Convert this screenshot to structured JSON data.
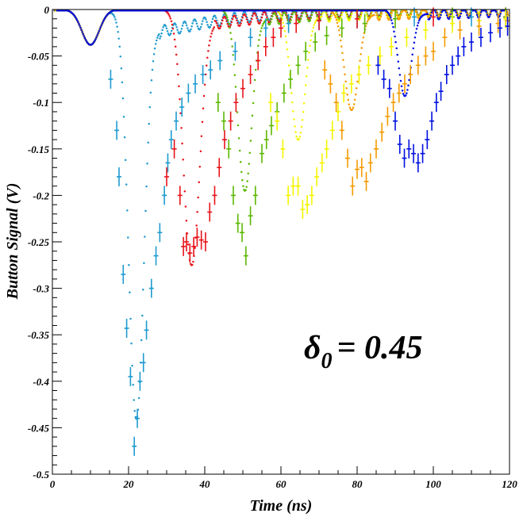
{
  "chart_data": {
    "type": "scatter",
    "title": "",
    "xlabel": "Time (ns)",
    "ylabel": "Button Signal (V)",
    "xlim": [
      0,
      120
    ],
    "ylim": [
      -0.5,
      0
    ],
    "grid": false,
    "x_ticks": [
      "0",
      "20",
      "40",
      "60",
      "80",
      "100",
      "120"
    ],
    "y_ticks": [
      "0",
      "-0.05",
      "-0.1",
      "-0.15",
      "-0.2",
      "-0.25",
      "-0.3",
      "-0.35",
      "-0.4",
      "-0.45",
      "-0.5"
    ],
    "annotation": {
      "symbol": "δ",
      "subscript": "0",
      "text": "= 0.45"
    },
    "colors": [
      "#1f9bd0",
      "#e8141a",
      "#5cb800",
      "#f5f500",
      "#f59b00",
      "#0010e0"
    ],
    "series": [
      {
        "color": "#1f9bd0",
        "sim_peak_x": 22,
        "sim_peak_y": -0.44,
        "sim_width": 2.8,
        "measured": [
          [
            15.3,
            -0.075
          ],
          [
            16.9,
            -0.13
          ],
          [
            17.5,
            -0.18
          ],
          [
            18.6,
            -0.285
          ],
          [
            19.5,
            -0.343
          ],
          [
            20.5,
            -0.395
          ],
          [
            21.5,
            -0.47
          ],
          [
            22.3,
            -0.44
          ],
          [
            23.0,
            -0.4
          ],
          [
            23.9,
            -0.38
          ],
          [
            24.7,
            -0.345
          ],
          [
            26.0,
            -0.3
          ],
          [
            27.2,
            -0.265
          ],
          [
            28.2,
            -0.24
          ],
          [
            29.4,
            -0.2
          ],
          [
            30.3,
            -0.165
          ],
          [
            31.2,
            -0.14
          ],
          [
            32.5,
            -0.12
          ],
          [
            34.0,
            -0.105
          ],
          [
            35.7,
            -0.09
          ],
          [
            37.5,
            -0.08
          ],
          [
            39.5,
            -0.07
          ],
          [
            41.5,
            -0.065
          ],
          [
            44.0,
            -0.055
          ],
          [
            48.0,
            -0.045
          ],
          [
            52.0,
            -0.03
          ],
          [
            56.0,
            -0.02
          ],
          [
            62.0,
            -0.015
          ],
          [
            70.0,
            -0.012
          ],
          [
            80.0,
            -0.01
          ],
          [
            95.0,
            -0.008
          ],
          [
            110.0,
            -0.008
          ],
          [
            119.0,
            -0.008
          ]
        ]
      },
      {
        "color": "#e8141a",
        "sim_peak_x": 36.5,
        "sim_peak_y": -0.275,
        "sim_width": 3.0,
        "measured": [
          [
            30.0,
            -0.18
          ],
          [
            32.0,
            -0.15
          ],
          [
            33.5,
            -0.2
          ],
          [
            34.4,
            -0.255
          ],
          [
            35.2,
            -0.25
          ],
          [
            36.1,
            -0.262
          ],
          [
            37.1,
            -0.255
          ],
          [
            38.0,
            -0.245
          ],
          [
            39.1,
            -0.248
          ],
          [
            40.2,
            -0.25
          ],
          [
            41.3,
            -0.218
          ],
          [
            42.6,
            -0.2
          ],
          [
            43.8,
            -0.17
          ],
          [
            45.2,
            -0.14
          ],
          [
            46.8,
            -0.12
          ],
          [
            48.2,
            -0.1
          ],
          [
            50.0,
            -0.085
          ],
          [
            52.0,
            -0.07
          ],
          [
            54.0,
            -0.055
          ],
          [
            56.0,
            -0.04
          ],
          [
            58.0,
            -0.03
          ],
          [
            60.0,
            -0.02
          ],
          [
            64.0,
            -0.015
          ],
          [
            70.0,
            -0.012
          ],
          [
            80.0,
            -0.01
          ],
          [
            100.0,
            -0.008
          ],
          [
            119.0,
            -0.008
          ]
        ]
      },
      {
        "color": "#5cb800",
        "sim_peak_x": 50.5,
        "sim_peak_y": -0.195,
        "sim_width": 2.6,
        "measured": [
          [
            43.5,
            -0.1
          ],
          [
            45.0,
            -0.12
          ],
          [
            46.3,
            -0.15
          ],
          [
            47.5,
            -0.2
          ],
          [
            48.7,
            -0.23
          ],
          [
            49.8,
            -0.24
          ],
          [
            50.8,
            -0.265
          ],
          [
            52.0,
            -0.222
          ],
          [
            53.3,
            -0.2
          ],
          [
            55.0,
            -0.155
          ],
          [
            56.2,
            -0.14
          ],
          [
            57.5,
            -0.125
          ],
          [
            59.0,
            -0.11
          ],
          [
            60.8,
            -0.09
          ],
          [
            62.5,
            -0.075
          ],
          [
            64.5,
            -0.06
          ],
          [
            66.5,
            -0.045
          ],
          [
            69.0,
            -0.035
          ],
          [
            72.0,
            -0.028
          ],
          [
            76.0,
            -0.02
          ],
          [
            82.0,
            -0.015
          ],
          [
            90.0,
            -0.01
          ],
          [
            105.0,
            -0.008
          ],
          [
            119.0,
            -0.008
          ]
        ]
      },
      {
        "color": "#f5f500",
        "sim_peak_x": 64.5,
        "sim_peak_y": -0.14,
        "sim_width": 2.6,
        "measured": [
          [
            57.3,
            -0.1
          ],
          [
            59.0,
            -0.12
          ],
          [
            60.5,
            -0.15
          ],
          [
            61.9,
            -0.2
          ],
          [
            63.2,
            -0.19
          ],
          [
            64.5,
            -0.19
          ],
          [
            65.7,
            -0.215
          ],
          [
            66.9,
            -0.21
          ],
          [
            68.1,
            -0.2
          ],
          [
            69.4,
            -0.18
          ],
          [
            70.8,
            -0.165
          ],
          [
            72.0,
            -0.15
          ],
          [
            73.5,
            -0.13
          ],
          [
            75.0,
            -0.11
          ],
          [
            76.5,
            -0.09
          ],
          [
            78.5,
            -0.08
          ],
          [
            80.5,
            -0.07
          ],
          [
            83.0,
            -0.06
          ],
          [
            86.0,
            -0.05
          ],
          [
            89.0,
            -0.04
          ],
          [
            93.0,
            -0.03
          ],
          [
            98.0,
            -0.022
          ],
          [
            105.0,
            -0.015
          ],
          [
            112.0,
            -0.012
          ],
          [
            119.0,
            -0.01
          ]
        ]
      },
      {
        "color": "#f59b00",
        "sim_peak_x": 78.5,
        "sim_peak_y": -0.108,
        "sim_width": 2.6,
        "measured": [
          [
            71.5,
            -0.065
          ],
          [
            73.0,
            -0.08
          ],
          [
            74.5,
            -0.1
          ],
          [
            76.0,
            -0.13
          ],
          [
            77.5,
            -0.16
          ],
          [
            78.8,
            -0.19
          ],
          [
            80.0,
            -0.172
          ],
          [
            81.2,
            -0.17
          ],
          [
            82.4,
            -0.185
          ],
          [
            83.5,
            -0.165
          ],
          [
            85.0,
            -0.15
          ],
          [
            86.5,
            -0.132
          ],
          [
            88.0,
            -0.115
          ],
          [
            89.5,
            -0.1
          ],
          [
            91.0,
            -0.09
          ],
          [
            92.5,
            -0.08
          ],
          [
            94.0,
            -0.07
          ],
          [
            96.0,
            -0.06
          ],
          [
            98.0,
            -0.05
          ],
          [
            100.0,
            -0.045
          ],
          [
            103.0,
            -0.03
          ],
          [
            107.0,
            -0.022
          ],
          [
            112.0,
            -0.018
          ],
          [
            117.0,
            -0.015
          ],
          [
            119.5,
            -0.012
          ]
        ]
      },
      {
        "color": "#0010e0",
        "sim_peak_x": 92.5,
        "sim_peak_y": -0.093,
        "sim_width": 2.4,
        "measured": [
          [
            85.5,
            -0.06
          ],
          [
            87.0,
            -0.075
          ],
          [
            88.5,
            -0.085
          ],
          [
            90.0,
            -0.12
          ],
          [
            91.2,
            -0.145
          ],
          [
            92.4,
            -0.16
          ],
          [
            93.6,
            -0.15
          ],
          [
            94.8,
            -0.155
          ],
          [
            96.0,
            -0.165
          ],
          [
            97.2,
            -0.155
          ],
          [
            98.4,
            -0.14
          ],
          [
            99.6,
            -0.12
          ],
          [
            100.8,
            -0.1
          ],
          [
            102.0,
            -0.088
          ],
          [
            103.5,
            -0.07
          ],
          [
            105.0,
            -0.06
          ],
          [
            106.5,
            -0.05
          ],
          [
            108.0,
            -0.04
          ],
          [
            110.0,
            -0.035
          ],
          [
            112.5,
            -0.03
          ],
          [
            115.0,
            -0.025
          ],
          [
            117.5,
            -0.02
          ],
          [
            119.5,
            -0.018
          ]
        ]
      }
    ]
  }
}
